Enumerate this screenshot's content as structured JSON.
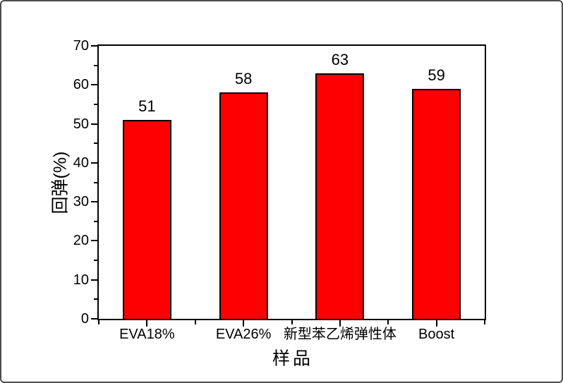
{
  "colors": {
    "bar_fill": "#FF0000",
    "bar_border": "#000000",
    "axis": "#000000",
    "background": "#FFFFFF",
    "outer_border": "#4D4D4D"
  },
  "chart_data": {
    "type": "bar",
    "categories": [
      "EVA18%",
      "EVA26%",
      "新型苯乙烯弹性体",
      "Boost"
    ],
    "values": [
      51,
      58,
      63,
      59
    ],
    "bar_value_labels": [
      "51",
      "58",
      "63",
      "59"
    ],
    "title": "",
    "xlabel": "样品",
    "ylabel": "回弹(%)",
    "ylim": [
      0,
      70
    ],
    "yticks": [
      0,
      10,
      20,
      30,
      40,
      50,
      60,
      70
    ],
    "yticks_minor": [
      5,
      15,
      25,
      35,
      45,
      55,
      65
    ],
    "grid": false,
    "legend": "none"
  }
}
